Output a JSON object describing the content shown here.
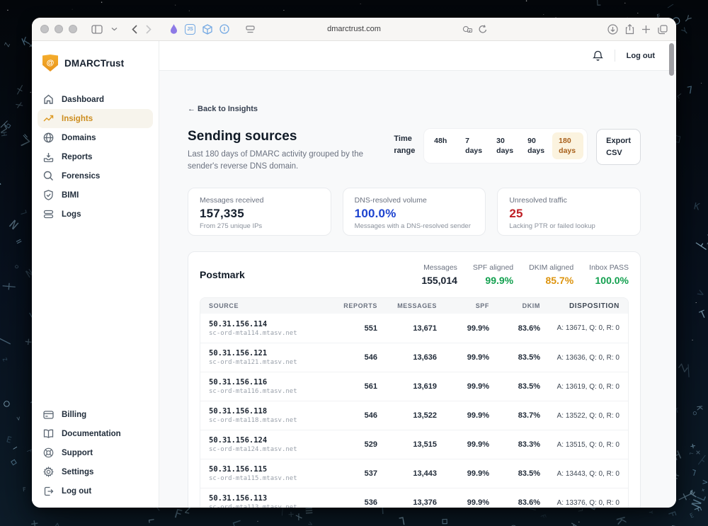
{
  "colors": {
    "accent_orange": "#cd8d1e",
    "green": "#13a04f",
    "amber": "#dd940e",
    "blue": "#1d43cf",
    "red": "#bf2026",
    "brand_shield": "#ef9e22"
  },
  "backdrop": {
    "charset": "T7FELKYXZNH<>+=─│┐└├┼○◇□≡",
    "glyph_shades": [
      "#9ec7dd",
      "#7fa9c2",
      "#5c86a0"
    ],
    "star_color": "#ffffff"
  },
  "browser": {
    "url": "dmarctrust.com",
    "js_badge": "JS"
  },
  "sidebar": {
    "brand": "DMARCTrust",
    "brand_glyph": "@",
    "items": [
      {
        "label": "Dashboard"
      },
      {
        "label": "Insights"
      },
      {
        "label": "Domains"
      },
      {
        "label": "Reports"
      },
      {
        "label": "Forensics"
      },
      {
        "label": "BIMI"
      },
      {
        "label": "Logs"
      }
    ],
    "footer_items": [
      {
        "label": "Billing"
      },
      {
        "label": "Documentation"
      },
      {
        "label": "Support"
      },
      {
        "label": "Settings"
      },
      {
        "label": "Log out"
      }
    ]
  },
  "topbar": {
    "logout_label": "Log out"
  },
  "page": {
    "back_link": "← Back to Insights",
    "title": "Sending sources",
    "subtitle": "Last 180 days of DMARC activity grouped by the sender's reverse DNS domain.",
    "time_range_label": "Time range",
    "time_range_options": [
      {
        "label": "48h"
      },
      {
        "label": "7 days"
      },
      {
        "label": "30 days"
      },
      {
        "label": "90 days"
      },
      {
        "label": "180 days"
      }
    ],
    "export_label": "Export CSV"
  },
  "stats": [
    {
      "label": "Messages received",
      "value": "157,335",
      "sub": "From 275 unique IPs"
    },
    {
      "label": "DNS-resolved volume",
      "value": "100.0%",
      "sub": "Messages with a DNS-resolved sender"
    },
    {
      "label": "Unresolved traffic",
      "value": "25",
      "sub": "Lacking PTR or failed lookup"
    }
  ],
  "provider": {
    "name": "Postmark",
    "summary": [
      {
        "label": "Messages",
        "value": "155,014"
      },
      {
        "label": "SPF aligned",
        "value": "99.9%"
      },
      {
        "label": "DKIM aligned",
        "value": "85.7%"
      },
      {
        "label": "Inbox PASS",
        "value": "100.0%"
      }
    ],
    "table": {
      "columns": [
        "SOURCE",
        "REPORTS",
        "MESSAGES",
        "SPF",
        "DKIM",
        "DISPOSITION"
      ],
      "rows": [
        {
          "ip": "50.31.156.114",
          "host": "sc-ord-mta114.mtasv.net",
          "reports": "551",
          "messages": "13,671",
          "spf": "99.9%",
          "dkim": "83.6%",
          "disposition": "A: 13671, Q: 0, R: 0"
        },
        {
          "ip": "50.31.156.121",
          "host": "sc-ord-mta121.mtasv.net",
          "reports": "546",
          "messages": "13,636",
          "spf": "99.9%",
          "dkim": "83.5%",
          "disposition": "A: 13636, Q: 0, R: 0"
        },
        {
          "ip": "50.31.156.116",
          "host": "sc-ord-mta116.mtasv.net",
          "reports": "561",
          "messages": "13,619",
          "spf": "99.9%",
          "dkim": "83.5%",
          "disposition": "A: 13619, Q: 0, R: 0"
        },
        {
          "ip": "50.31.156.118",
          "host": "sc-ord-mta118.mtasv.net",
          "reports": "546",
          "messages": "13,522",
          "spf": "99.9%",
          "dkim": "83.7%",
          "disposition": "A: 13522, Q: 0, R: 0"
        },
        {
          "ip": "50.31.156.124",
          "host": "sc-ord-mta124.mtasv.net",
          "reports": "529",
          "messages": "13,515",
          "spf": "99.9%",
          "dkim": "83.3%",
          "disposition": "A: 13515, Q: 0, R: 0"
        },
        {
          "ip": "50.31.156.115",
          "host": "sc-ord-mta115.mtasv.net",
          "reports": "537",
          "messages": "13,443",
          "spf": "99.9%",
          "dkim": "83.5%",
          "disposition": "A: 13443, Q: 0, R: 0"
        },
        {
          "ip": "50.31.156.113",
          "host": "sc-ord-mta113.mtasv.net",
          "reports": "536",
          "messages": "13,376",
          "spf": "99.9%",
          "dkim": "83.6%",
          "disposition": "A: 13376, Q: 0, R: 0"
        }
      ]
    }
  }
}
